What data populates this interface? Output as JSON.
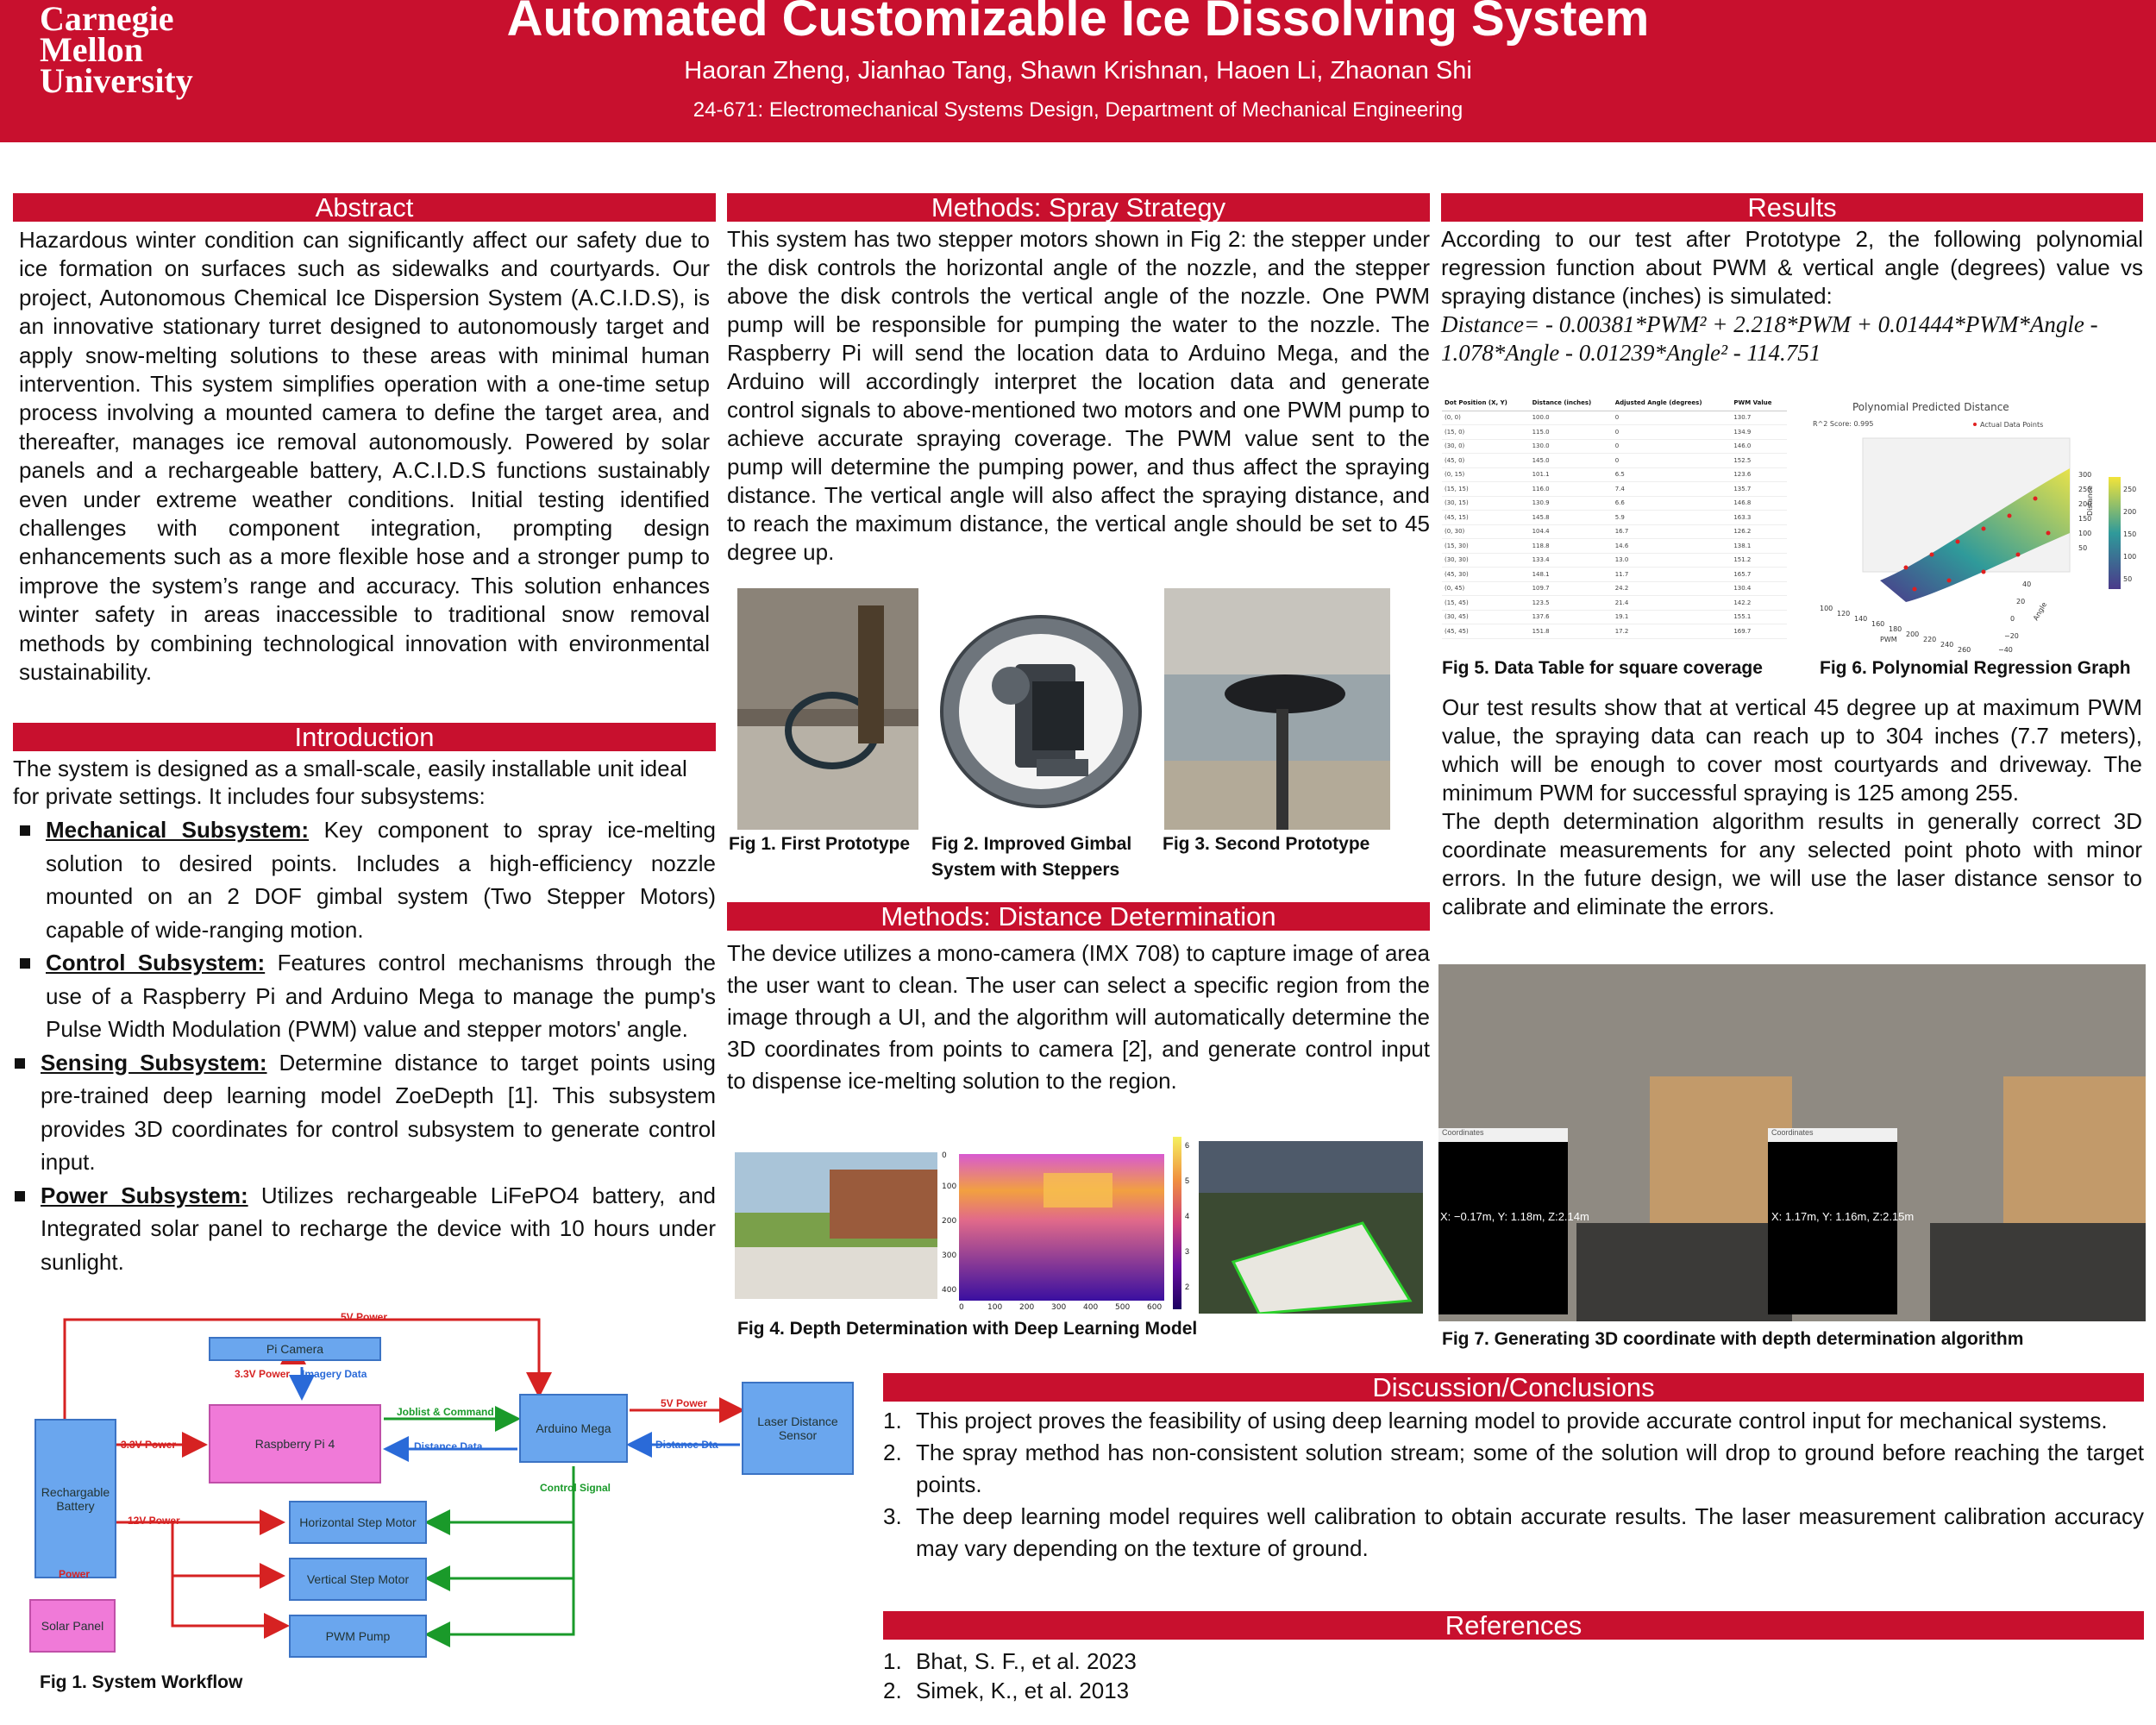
{
  "header": {
    "logo_lines": [
      "Carnegie",
      "Mellon",
      "University"
    ],
    "title": "Automated Customizable Ice Dissolving System",
    "authors": "Haoran Zheng, Jianhao Tang, Shawn Krishnan, Haoen Li, Zhaonan Shi",
    "affiliation": "24-671: Electromechanical Systems Design,  Department of Mechanical Engineering"
  },
  "abstract": {
    "title": "Abstract",
    "text": "Hazardous winter condition can significantly affect our safety due to ice formation on surfaces such as sidewalks and courtyards. Our project, Autonomous Chemical Ice Dispersion System (A.C.I.D.S), is an innovative stationary turret designed to autonomously target and apply snow-melting solutions to these areas with minimal human intervention. This system simplifies operation with a one-time setup process involving a mounted camera to define the target area, and thereafter, manages ice removal autonomously. Powered by solar panels and a rechargeable battery, A.C.I.D.S functions sustainably even under extreme weather conditions. Initial testing identified challenges with component integration, prompting design enhancements such as a more flexible hose and a stronger pump to improve the system’s range and accuracy. This solution enhances winter safety in areas inaccessible to traditional snow removal methods by combining technological innovation with environmental sustainability."
  },
  "introduction": {
    "title": "Introduction",
    "text": "The system is designed as a small-scale, easily installable unit ideal for private settings. It includes four subsystems:",
    "items": [
      {
        "head": "Mechanical Subsystem:",
        "text": " Key component to spray ice-melting solution to desired points. Includes a high-efficiency nozzle mounted on an 2 DOF gimbal system (Two Stepper Motors) capable of wide-ranging motion."
      },
      {
        "head": "Control Subsystem:",
        "text": " Features control mechanisms through the use of a Raspberry Pi and Arduino Mega to manage the pump's Pulse Width Modulation (PWM) value and stepper motors' angle."
      },
      {
        "head": "Sensing Subsystem:",
        "text": " Determine distance to target points using pre-trained deep learning model ZoeDepth [1]. This subsystem provides 3D coordinates for control subsystem to generate control input."
      },
      {
        "head": "Power Subsystem:",
        "text": " Utilizes rechargeable LiFePO4 battery, and Integrated solar panel to recharge the device with 10 hours under sunlight."
      }
    ]
  },
  "workflow": {
    "caption": "Fig 1. System Workflow",
    "boxes": {
      "pi_camera": "Pi Camera",
      "raspberry_pi": "Raspberry Pi 4",
      "arduino": "Arduino Mega",
      "laser": "Laser Distance Sensor",
      "battery": "Rechargable Battery",
      "h_motor": "Horizontal Step Motor",
      "v_motor": "Vertical Step Motor",
      "pump": "PWM Pump",
      "solar": "Solar Panel"
    },
    "labels": {
      "5v_top": "5V Power",
      "3v3_cam": "3.3V Power",
      "imagery": "Imagery Data",
      "3v3_pi": "3.3V Power",
      "joblist": "Joblist & Command",
      "distance_data": "Distance Data",
      "5v_laser": "5V Power",
      "distance_dta": "Distance Dta",
      "control_signal": "Control Signal",
      "12v": "12V Power",
      "power": "Power"
    }
  },
  "spray": {
    "title": "Methods: Spray Strategy",
    "text": "This system has two stepper motors shown in Fig 2: the stepper under the disk controls the horizontal angle of the nozzle, and the stepper above the disk controls the vertical angle of the nozzle. One PWM pump will be responsible for pumping the water to the nozzle. The Raspberry Pi will send the location data to Arduino Mega, and the Arduino will accordingly interpret the location data and generate control signals to above-mentioned two motors and one PWM pump to achieve accurate spraying coverage. The PWM value sent to the pump will determine the pumping power, and thus affect the spraying distance. The vertical angle will also affect the spraying distance, and to reach the maximum distance, the vertical angle should be set to 45 degree up.",
    "fig1": "Fig 1. First Prototype",
    "fig2": "Fig 2. Improved Gimbal System with Steppers",
    "fig3": "Fig 3. Second Prototype"
  },
  "distance": {
    "title": "Methods: Distance Determination",
    "text": "The device utilizes a mono-camera (IMX 708) to capture image of area the user want to clean. The user can select a specific region from the image through a UI, and the algorithm will automatically determine the 3D coordinates from points to camera [2], and generate control input to dispense ice-melting solution to the region.",
    "fig4": "Fig 4. Depth Determination with Deep Learning Model",
    "depth_xticks": [
      "0",
      "100",
      "200",
      "300",
      "400",
      "500",
      "600"
    ],
    "depth_yticks": [
      "0",
      "100",
      "200",
      "300",
      "400"
    ],
    "colorbar_ticks": [
      "6",
      "5",
      "4",
      "3",
      "2"
    ]
  },
  "results": {
    "title": "Results",
    "text1": "According to our test after Prototype 2, the following polynomial regression function about PWM & vertical angle (degrees) value vs spraying distance (inches) is simulated:",
    "eq_line1": "Distance= - 0.00381*PWM² + 2.218*PWM + 0.01444*PWM*Angle -",
    "eq_line2": "1.078*Angle - 0.01239*Angle² - 114.751",
    "table_headers": [
      "Dot Position (X, Y)",
      "Distance (inches)",
      "Adjusted Angle (degrees)",
      "PWM Value"
    ],
    "table_rows": [
      [
        "(0, 0)",
        "100.0",
        "0",
        "130.7"
      ],
      [
        "(15, 0)",
        "115.0",
        "0",
        "134.9"
      ],
      [
        "(30, 0)",
        "130.0",
        "0",
        "146.0"
      ],
      [
        "(45, 0)",
        "145.0",
        "0",
        "152.5"
      ],
      [
        "(0, 15)",
        "101.1",
        "6.5",
        "123.6"
      ],
      [
        "(15, 15)",
        "116.0",
        "7.4",
        "135.7"
      ],
      [
        "(30, 15)",
        "130.9",
        "6.6",
        "146.8"
      ],
      [
        "(45, 15)",
        "145.8",
        "5.9",
        "163.3"
      ],
      [
        "(0, 30)",
        "104.4",
        "16.7",
        "126.2"
      ],
      [
        "(15, 30)",
        "118.8",
        "14.6",
        "138.1"
      ],
      [
        "(30, 30)",
        "133.4",
        "13.0",
        "151.2"
      ],
      [
        "(45, 30)",
        "148.1",
        "11.7",
        "165.7"
      ],
      [
        "(0, 45)",
        "109.7",
        "24.2",
        "130.4"
      ],
      [
        "(15, 45)",
        "123.5",
        "21.4",
        "142.2"
      ],
      [
        "(30, 45)",
        "137.6",
        "19.1",
        "155.1"
      ],
      [
        "(45, 45)",
        "151.8",
        "17.2",
        "169.7"
      ]
    ],
    "fig5": "Fig 5. Data Table for square coverage",
    "fig6": "Fig 6. Polynomial Regression Graph",
    "plot_title": "Polynomial Predicted Distance",
    "plot_r2": "R^2 Score: 0.995",
    "plot_legend": "Actual Data Points",
    "plot_xlabel": "PWM",
    "plot_ylabel": "Angle",
    "plot_zlabel": "Distance",
    "plot_xticks": [
      "100",
      "120",
      "140",
      "160",
      "180",
      "200",
      "220",
      "240",
      "260"
    ],
    "plot_yticks": [
      "40",
      "20",
      "0",
      "−20",
      "−40"
    ],
    "plot_zticks": [
      "300",
      "250",
      "200",
      "150",
      "100",
      "50"
    ],
    "plot_cbar": [
      "250",
      "200",
      "150",
      "100",
      "50"
    ],
    "text2": "Our test results show that at vertical 45 degree up at maximum PWM value, the spraying data can reach up to 304 inches (7.7 meters), which will be enough to cover most courtyards and driveway. The minimum PWM for successful spraying is 125 among 255.",
    "text3": "The depth determination algorithm results in generally correct 3D coordinate measurements for any selected point photo with minor errors. In the future design, we will use the laser distance sensor to calibrate and eliminate the errors.",
    "fig7": "Fig 7. Generating 3D coordinate with depth determination algorithm",
    "coord_left": "X: −0.17m, Y: 1.18m, Z:2.14m",
    "coord_right": "X: 1.17m, Y: 1.16m, Z:2.15m",
    "window_title": "Coordinates"
  },
  "discussion": {
    "title": "Discussion/Conclusions",
    "items": [
      "This project proves the feasibility of using deep learning model to provide accurate control input for mechanical systems.",
      "The spray method has non-consistent solution stream; some of the solution will drop to ground before reaching the target points.",
      "The deep learning model requires well calibration to obtain accurate results. The laser measurement calibration accuracy may vary depending on the texture of ground."
    ]
  },
  "references": {
    "title": "References",
    "items": [
      "Bhat, S. F., et al. 2023",
      "Simek, K., et al. 2013"
    ]
  }
}
